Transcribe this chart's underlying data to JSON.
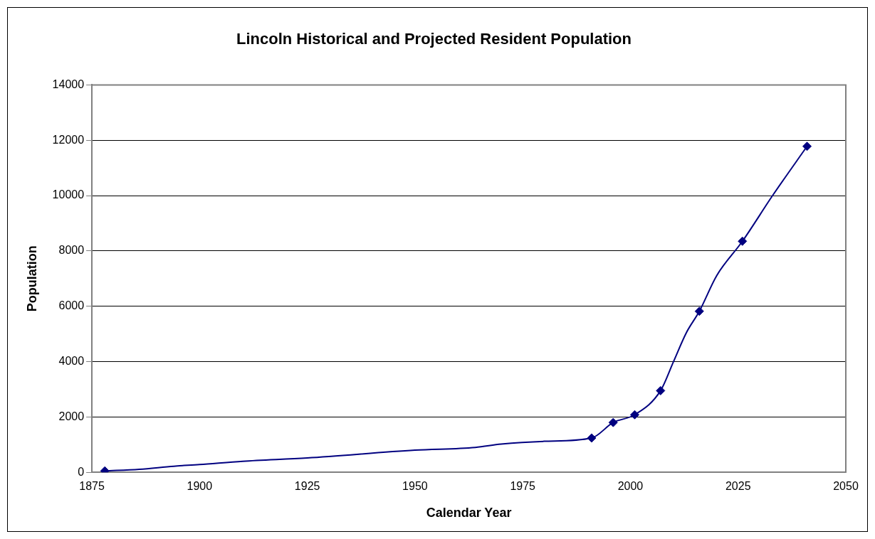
{
  "chart_data": {
    "type": "line",
    "title": "Lincoln Historical and Projected Resident Population",
    "xlabel": "Calendar Year",
    "ylabel": "Population",
    "xlim": [
      1875,
      2050
    ],
    "xticks": [
      1875,
      1900,
      1925,
      1950,
      1975,
      2000,
      2025,
      2050
    ],
    "ylim": [
      0,
      14000
    ],
    "yticks": [
      0,
      2000,
      4000,
      6000,
      8000,
      10000,
      12000,
      14000
    ],
    "grid": "y",
    "legend": false,
    "series": [
      {
        "marker": "none",
        "color": "#000080",
        "x": [
          1878,
          1886,
          1894,
          1900,
          1910,
          1925,
          1950,
          1964,
          1970,
          1980,
          1991,
          1996,
          2001,
          2007,
          2010,
          2013,
          2016,
          2020,
          2026,
          2033,
          2041
        ],
        "values": [
          50,
          110,
          220,
          280,
          400,
          520,
          800,
          900,
          1020,
          1120,
          1240,
          1800,
          2080,
          2950,
          4000,
          5050,
          5820,
          7100,
          8350,
          10000,
          11780
        ]
      },
      {
        "type": "scatter",
        "marker": "diamond",
        "color": "#000080",
        "x": [
          1878,
          1991,
          1996,
          2001,
          2007,
          2016,
          2026,
          2041
        ],
        "values": [
          50,
          1240,
          1800,
          2080,
          2950,
          5820,
          8350,
          11780
        ]
      }
    ]
  }
}
